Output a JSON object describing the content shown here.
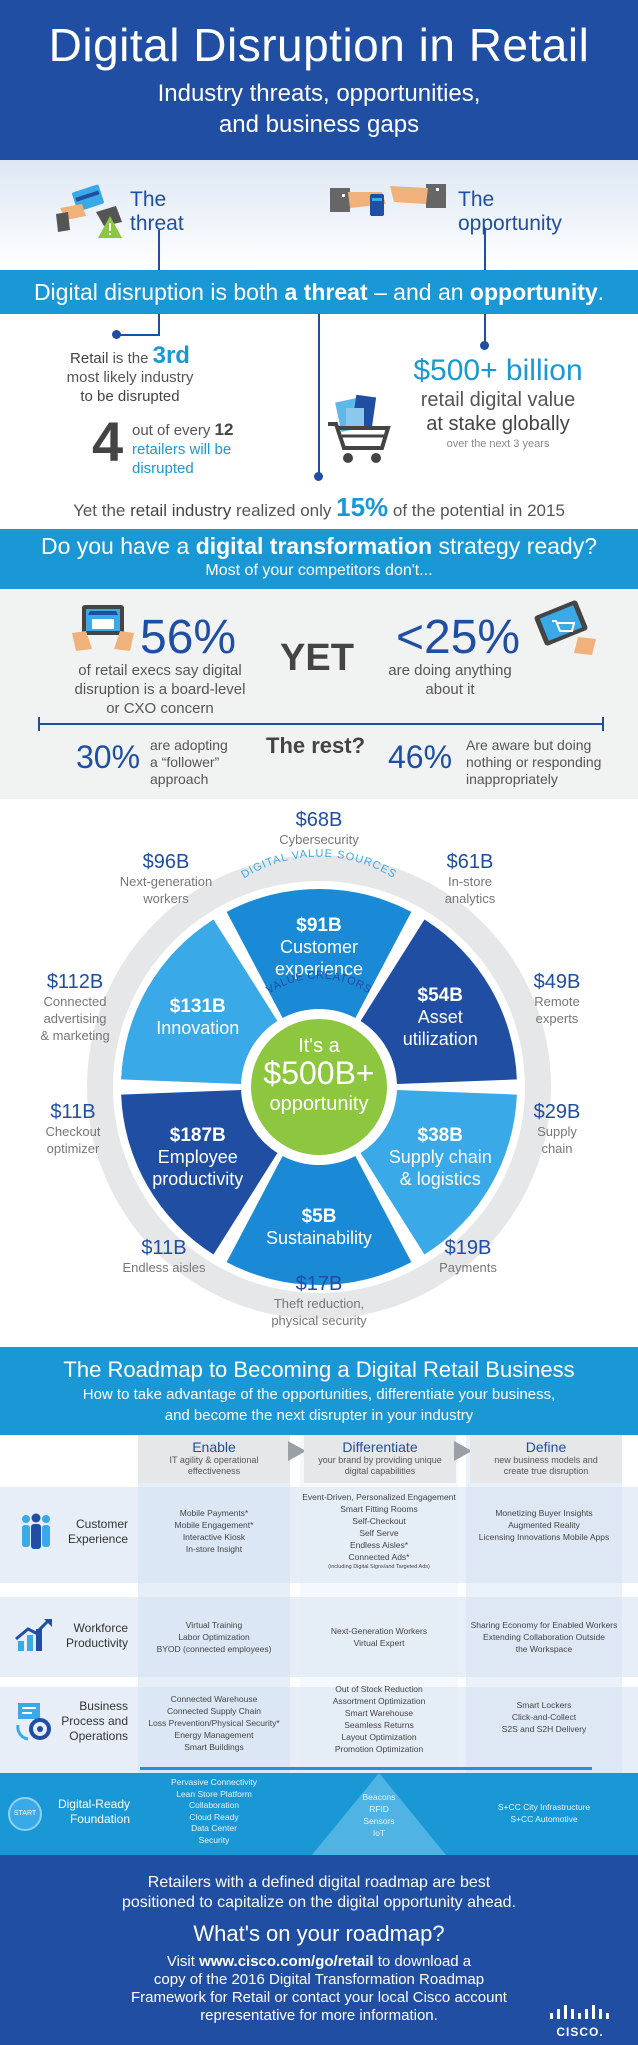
{
  "header": {
    "title": "Digital Disruption in Retail",
    "subtitle_line1": "Industry threats, opportunities,",
    "subtitle_line2": "and business gaps"
  },
  "intro": {
    "threat_line1": "The",
    "threat_line2": "threat",
    "opp_line1": "The",
    "opp_line2": "opportunity"
  },
  "band1": {
    "pre": "Digital disruption is both ",
    "threat": "a threat",
    "mid": " – and an ",
    "opportunity": "opportunity",
    "end": "."
  },
  "threat_stats": {
    "retail": "Retail",
    "is_the": " is the ",
    "rank": "3rd",
    "line2": "most likely industry",
    "line3": "to be disrupted",
    "big4": "4",
    "out_of_every": "out of every ",
    "twelve": "12",
    "retailers": "retailers will be",
    "disrupted": "disrupted"
  },
  "opp_stats": {
    "value": "$500+ billion",
    "line2": "retail digital value",
    "line3": "at stake globally",
    "line4": "over the next 3 years"
  },
  "realized": {
    "pre": "Yet the ",
    "industry": "retail industry",
    "mid": " realized only ",
    "pct": "15%",
    "post": " of the potential in 2015"
  },
  "band2": {
    "pre": "Do you have a ",
    "bold": "digital transformation",
    "post": " strategy ready?",
    "sub": "Most of your competitors don't..."
  },
  "strategy": {
    "left_pct": "56%",
    "left_l1": "of retail execs say digital",
    "left_l2": "disruption is a board-level",
    "left_l3": "or CXO concern",
    "yet": "YET",
    "right_pct": "<25%",
    "right_l1": "are doing anything",
    "right_l2": "about it",
    "rest": "The rest?",
    "r30": "30%",
    "r30_l1": "are adopting",
    "r30_l2": "a “follower”",
    "r30_l3": "approach",
    "r46": "46%",
    "r46_l1": "Are aware but doing",
    "r46_l2": "nothing or responding",
    "r46_l3": "inappropriately"
  },
  "wheel": {
    "ring_label": "DIGITAL VALUE SOURCES",
    "creators_label": "VALUE CREATORS",
    "center_l1": "It's a",
    "center_l2": "$500B+",
    "center_l3": "opportunity",
    "colors": {
      "light": "#39a9e8",
      "mid": "#1a8ad6",
      "dark": "#1f4ea3",
      "green": "#8dc63f",
      "ring": "#e6e7e8"
    },
    "segments": [
      {
        "value": "$91B",
        "line1": "Customer",
        "line2": "experience"
      },
      {
        "value": "$54B",
        "line1": "Asset",
        "line2": "utilization"
      },
      {
        "value": "$38B",
        "line1": "Supply chain",
        "line2": "& logistics"
      },
      {
        "value": "$5B",
        "line1": "Sustainability",
        "line2": ""
      },
      {
        "value": "$187B",
        "line1": "Employee",
        "line2": "productivity"
      },
      {
        "value": "$131B",
        "line1": "Innovation",
        "line2": ""
      }
    ],
    "external": [
      {
        "value": "$68B",
        "l1": "Cybersecurity",
        "l2": "",
        "l3": ""
      },
      {
        "value": "$61B",
        "l1": "In-store",
        "l2": "analytics",
        "l3": ""
      },
      {
        "value": "$49B",
        "l1": "Remote",
        "l2": "experts",
        "l3": ""
      },
      {
        "value": "$29B",
        "l1": "Supply",
        "l2": "chain",
        "l3": ""
      },
      {
        "value": "$19B",
        "l1": "Payments",
        "l2": "",
        "l3": ""
      },
      {
        "value": "$17B",
        "l1": "Theft reduction,",
        "l2": "physical security",
        "l3": ""
      },
      {
        "value": "$11B",
        "l1": "Endless aisles",
        "l2": "",
        "l3": ""
      },
      {
        "value": "$11B",
        "l1": "Checkout",
        "l2": "optimizer",
        "l3": ""
      },
      {
        "value": "$112B",
        "l1": "Connected",
        "l2": "advertising",
        "l3": "& marketing"
      },
      {
        "value": "$96B",
        "l1": "Next-generation",
        "l2": "workers",
        "l3": ""
      }
    ]
  },
  "band3": {
    "title": "The Roadmap to Becoming a Digital Retail Business",
    "sub1": "How to take advantage of the opportunities, differentiate your business,",
    "sub2": "and become the next disrupter in your industry"
  },
  "roadmap": {
    "columns": [
      {
        "title": "Enable",
        "sub1": "IT agility & operational",
        "sub2": "effectiveness"
      },
      {
        "title": "Differentiate",
        "sub1": "your brand by providing unique",
        "sub2": "digital capabilities"
      },
      {
        "title": "Define",
        "sub1": "new business models and",
        "sub2": "create true disruption"
      }
    ],
    "rows": [
      {
        "label1": "Customer",
        "label2": "Experience",
        "label3": "",
        "enable": [
          "Mobile Payments*",
          "Mobile Engagement*",
          "Interactive Kiosk",
          "In-store Insight"
        ],
        "differentiate": [
          "Event-Driven, Personalized Engagement",
          "Smart Fitting Rooms",
          "Self-Checkout",
          "Self Serve",
          "Endless Aisles*",
          "Connected Ads*"
        ],
        "differentiate_note": "(including Digital Signs/and Targeted Ads)",
        "define": [
          "Monetizing  Buyer Insights",
          "Augmented Reality",
          "Licensing  Innovations Mobile Apps"
        ]
      },
      {
        "label1": "Workforce",
        "label2": "Productivity",
        "label3": "",
        "enable": [
          "Virtual Training",
          "Labor Optimization",
          "BYOD (connected employees)"
        ],
        "differentiate": [
          "Next-Generation Workers",
          "Virtual Expert"
        ],
        "differentiate_note": "",
        "define": [
          "Sharing Economy for Enabled Workers",
          "Extending Collaboration Outside",
          "the Workspace"
        ]
      },
      {
        "label1": "Business",
        "label2": "Process and",
        "label3": "Operations",
        "enable": [
          "Connected Warehouse",
          "Connected Supply Chain",
          "Loss Prevention/Physical Security*",
          "Energy Management",
          "Smart Buildings"
        ],
        "differentiate": [
          "Out of Stock Reduction",
          "Assortment Optimization",
          "Smart Warehouse",
          "Seamless Returns",
          "Layout Optimization",
          "Promotion Optimization"
        ],
        "differentiate_note": "",
        "define": [
          "Smart Lockers",
          "Click-and-Collect",
          "S2S and S2H Delivery"
        ]
      }
    ],
    "foundation": {
      "start": "START",
      "label1": "Digital-Ready",
      "label2": "Foundation",
      "enable": [
        "Pervasive Connectivity",
        "Lean Store Platform",
        "Collaboration",
        "Cloud Ready",
        "Data Center",
        "Security"
      ],
      "differentiate": [
        "Beacons",
        "RFID",
        "Sensors",
        "IoT"
      ],
      "define": [
        "S+CC City Infrastructure",
        "S+CC Automotive"
      ]
    }
  },
  "footer": {
    "l1": "Retailers with a defined digital roadmap are best",
    "l2": "positioned to capitalize on the digital opportunity ahead.",
    "q": "What's on your roadmap?",
    "v_pre": "Visit ",
    "url": "www.cisco.com/go/retail",
    "v_post": " to download a",
    "l4": "copy of the 2016 Digital Transformation Roadmap",
    "l5": "Framework for Retail or contact your local Cisco account",
    "l6": "representative for more information.",
    "brand": "CISCO."
  }
}
